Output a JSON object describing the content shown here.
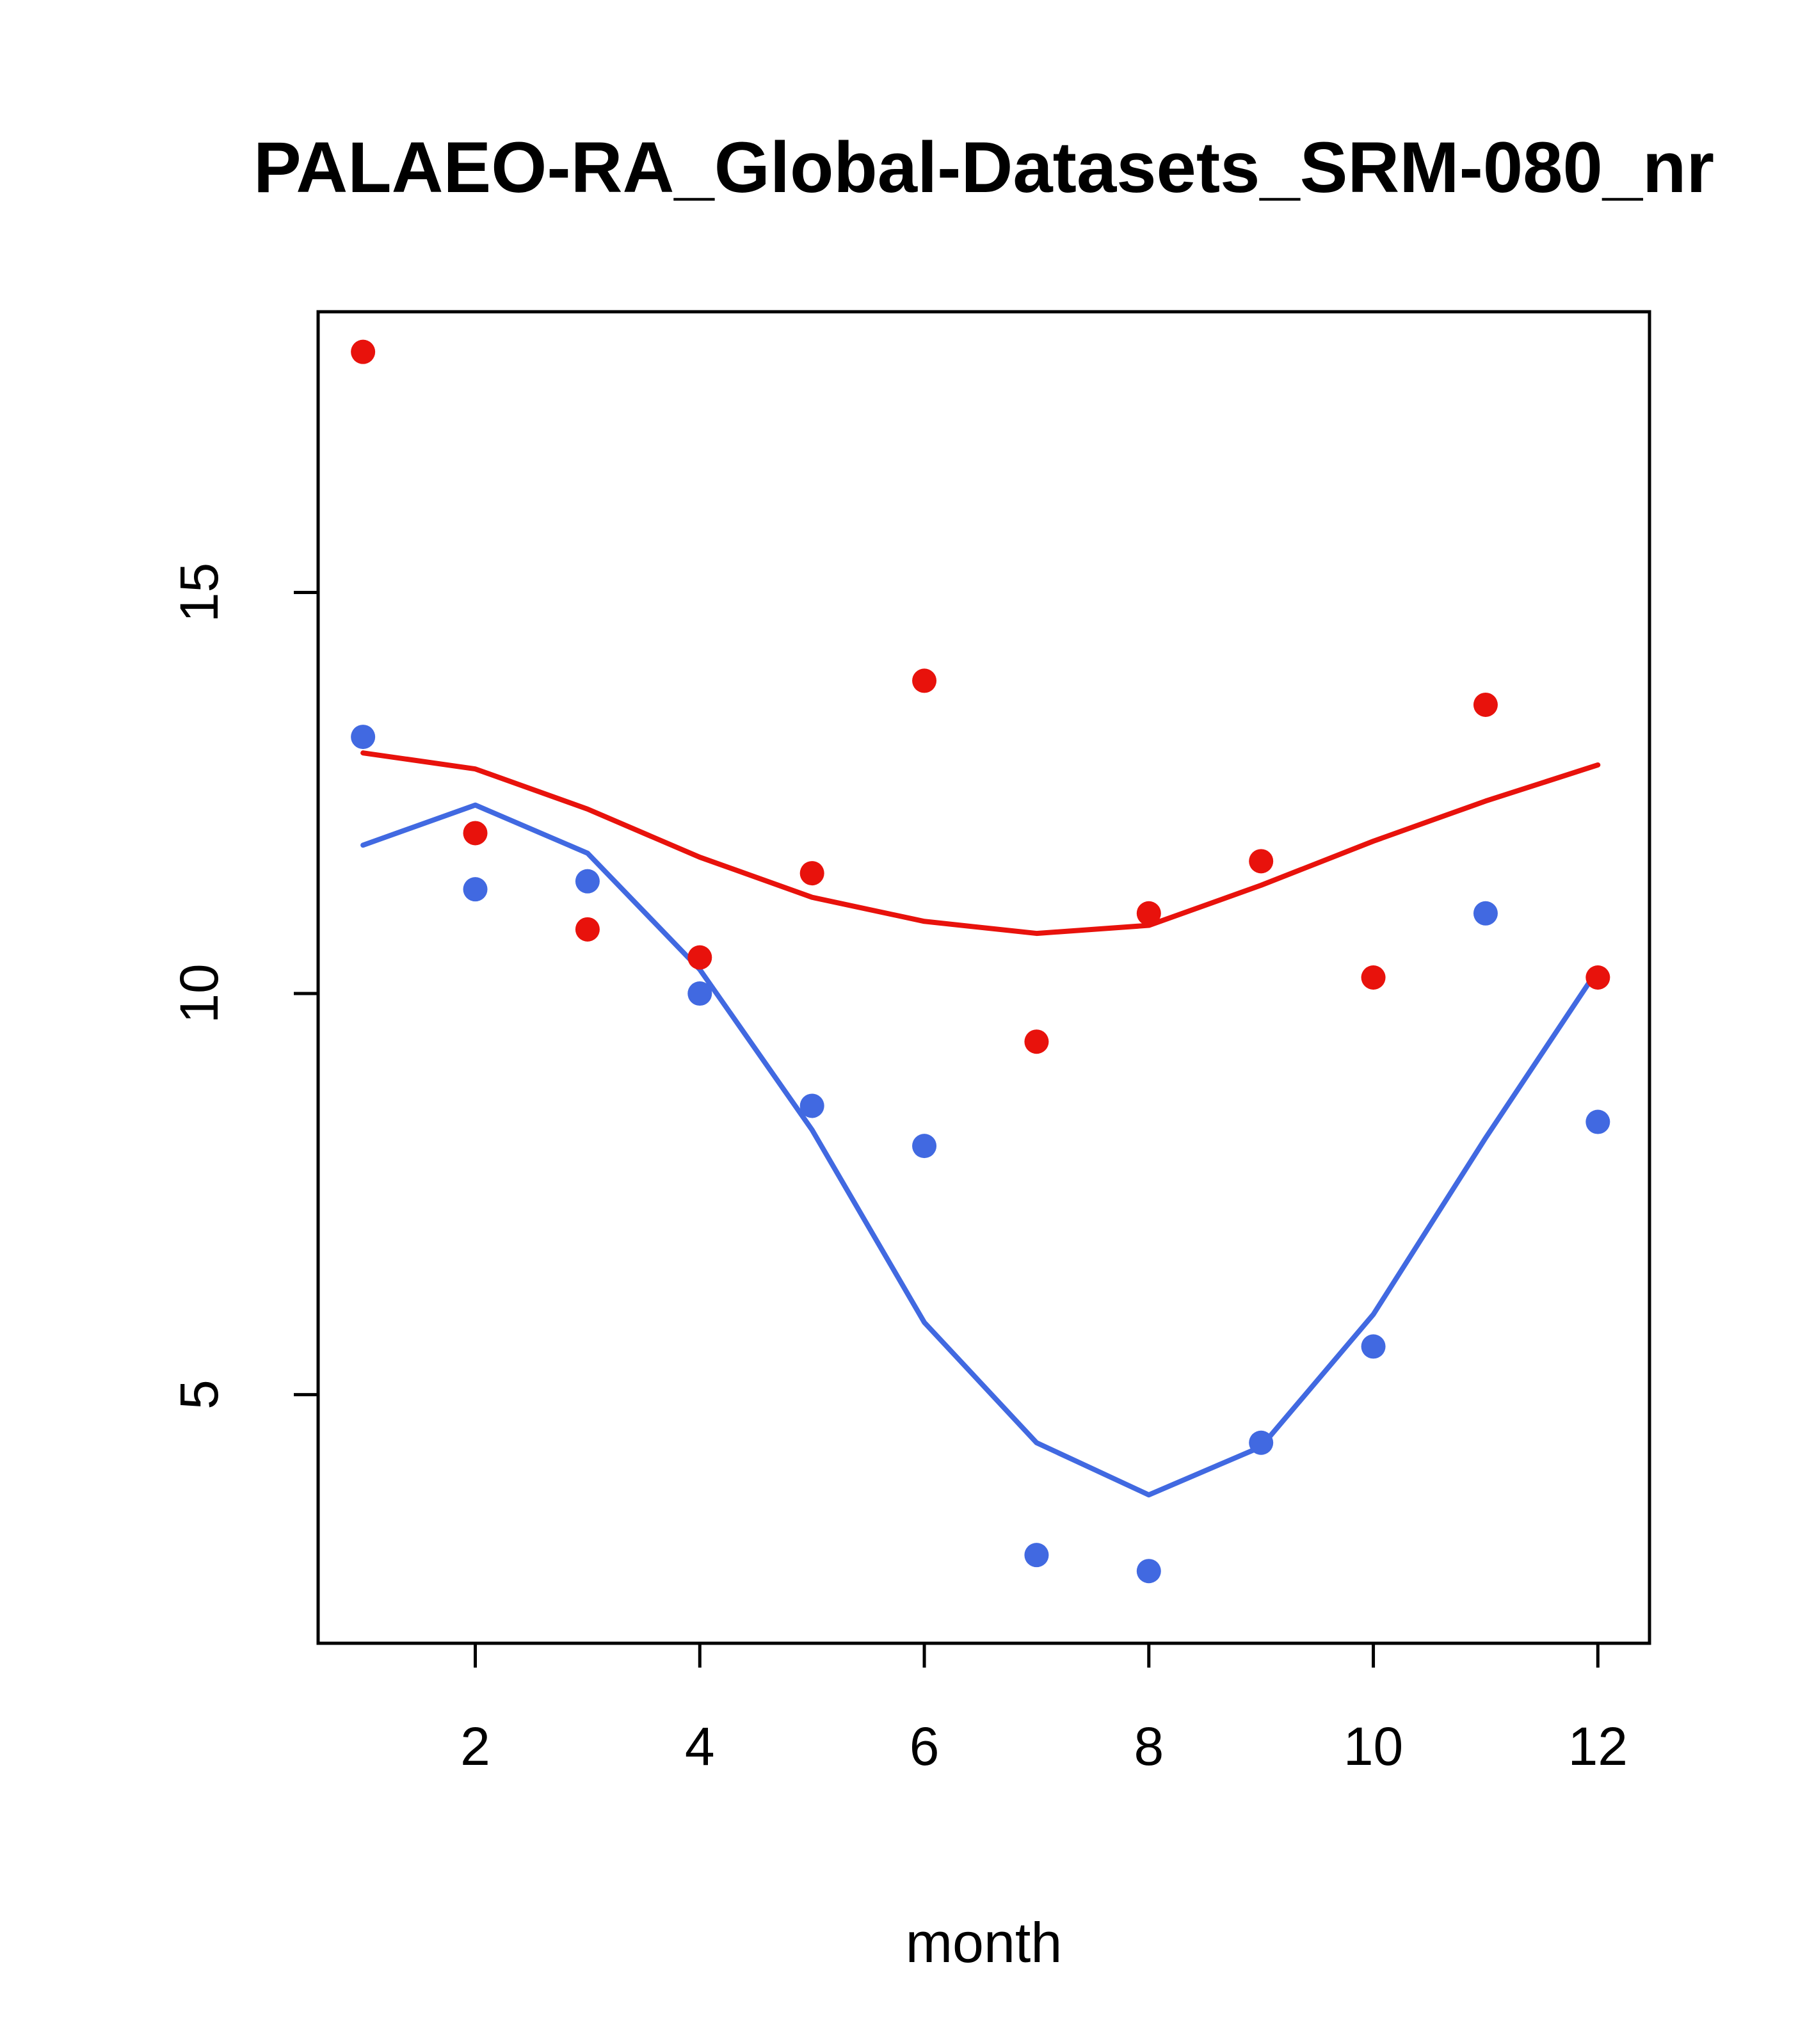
{
  "title": "PALAEO-RA_Global-Datasets_SRM-080_nr",
  "chart_data": {
    "type": "scatter",
    "title": "PALAEO-RA_Global-Datasets_SRM-080_nr",
    "xlabel": "month",
    "ylabel": "",
    "x": [
      1,
      2,
      3,
      4,
      5,
      6,
      7,
      8,
      9,
      10,
      11,
      12
    ],
    "xticks": [
      2,
      4,
      6,
      8,
      10,
      12
    ],
    "yticks": [
      5,
      10,
      15
    ],
    "xlim": [
      0.6,
      12.46
    ],
    "ylim": [
      1.9,
      18.5
    ],
    "grid": false,
    "legend": "none",
    "colors": {
      "red": "#e8120c",
      "blue": "#4169e1",
      "axis": "#000000"
    },
    "series": [
      {
        "name": "red-line-smooth",
        "kind": "line",
        "color": "#e8120c",
        "values": [
          13.0,
          12.8,
          12.3,
          11.7,
          11.2,
          10.9,
          10.75,
          10.85,
          11.35,
          11.9,
          12.4,
          12.85
        ]
      },
      {
        "name": "blue-line-smooth",
        "kind": "line",
        "color": "#4169e1",
        "values": [
          11.85,
          12.35,
          11.75,
          10.3,
          8.3,
          5.9,
          4.4,
          3.75,
          4.35,
          6.0,
          8.2,
          10.3
        ]
      },
      {
        "name": "red-points",
        "kind": "points",
        "color": "#e8120c",
        "values": [
          18.0,
          12.0,
          10.8,
          10.45,
          11.5,
          13.9,
          9.4,
          11.0,
          11.65,
          10.2,
          13.6,
          10.2
        ]
      },
      {
        "name": "blue-points",
        "kind": "points",
        "color": "#4169e1",
        "values": [
          13.2,
          11.3,
          11.4,
          10.0,
          8.6,
          8.1,
          3.0,
          2.8,
          4.4,
          5.6,
          11.0,
          8.4
        ]
      }
    ]
  }
}
